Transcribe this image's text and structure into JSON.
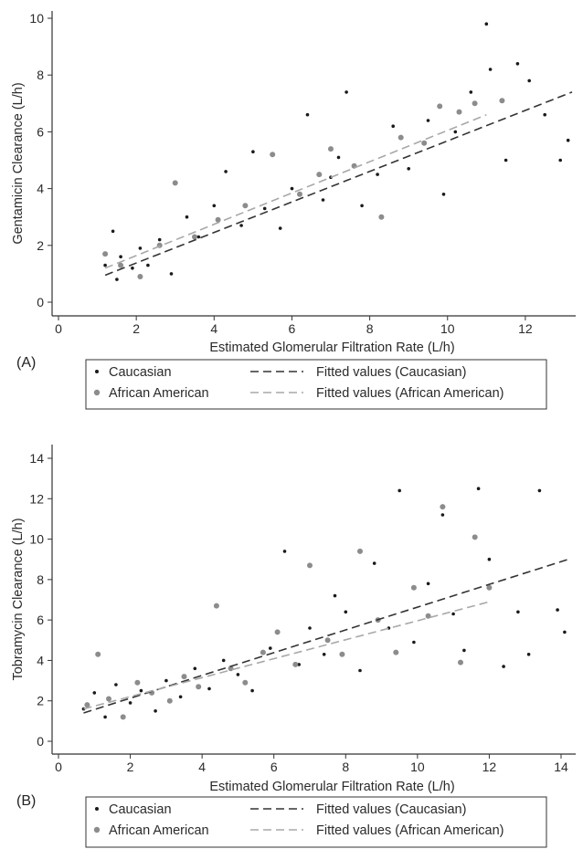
{
  "chart_data": [
    {
      "panel_label": "(A)",
      "type": "scatter",
      "xlabel": "Estimated Glomerular Filtration Rate (L/h)",
      "ylabel": "Gentamicin Clearance (L/h)",
      "xlim": [
        0,
        13.2
      ],
      "ylim": [
        -0.4,
        10.2
      ],
      "xticks": [
        0,
        2,
        4,
        6,
        8,
        10,
        12
      ],
      "yticks": [
        0,
        2,
        4,
        6,
        8,
        10
      ],
      "grid": false,
      "legend_position": "bottom",
      "legend": [
        "Caucasian",
        "African American",
        "Fitted values (Caucasian)",
        "Fitted values (African American)"
      ],
      "series": [
        {
          "name": "Caucasian",
          "kind": "points",
          "color": "#1a1a1a",
          "x": [
            1.2,
            1.4,
            1.5,
            1.6,
            1.9,
            2.1,
            2.3,
            2.6,
            2.9,
            3.3,
            3.6,
            4.0,
            4.3,
            4.7,
            5.0,
            5.3,
            5.7,
            6.0,
            6.4,
            6.8,
            7.0,
            7.2,
            7.4,
            7.8,
            8.2,
            8.6,
            9.0,
            9.5,
            9.9,
            10.2,
            10.6,
            11.0,
            11.1,
            11.5,
            11.8,
            12.1,
            12.5,
            12.9,
            13.1
          ],
          "y": [
            1.3,
            2.5,
            0.8,
            1.6,
            1.2,
            1.9,
            1.3,
            2.2,
            1.0,
            3.0,
            2.3,
            3.4,
            4.6,
            2.7,
            5.3,
            3.3,
            2.6,
            4.0,
            6.6,
            3.6,
            4.4,
            5.1,
            7.4,
            3.4,
            4.5,
            6.2,
            4.7,
            6.4,
            3.8,
            6.0,
            7.4,
            9.8,
            8.2,
            5.0,
            8.4,
            7.8,
            6.6,
            5.0,
            5.7
          ],
          "fit": {
            "name": "Fitted values (Caucasian)",
            "x": [
              1.2,
              13.2
            ],
            "y": [
              0.95,
              7.4
            ],
            "color": "#333333"
          }
        },
        {
          "name": "African American",
          "kind": "points",
          "color": "#8c8c8c",
          "x": [
            1.2,
            1.6,
            2.1,
            2.6,
            3.0,
            3.5,
            4.1,
            4.8,
            5.5,
            6.2,
            6.7,
            7.0,
            7.6,
            8.3,
            8.8,
            9.4,
            9.8,
            10.3,
            10.7,
            11.4
          ],
          "y": [
            1.7,
            1.3,
            0.9,
            2.0,
            4.2,
            2.3,
            2.9,
            3.4,
            5.2,
            3.8,
            4.5,
            5.4,
            4.8,
            3.0,
            5.8,
            5.6,
            6.9,
            6.7,
            7.0,
            7.1
          ],
          "fit": {
            "name": "Fitted values (African American)",
            "x": [
              1.2,
              11.0
            ],
            "y": [
              1.2,
              6.6
            ],
            "color": "#a8a8a8"
          }
        }
      ]
    },
    {
      "panel_label": "(B)",
      "type": "scatter",
      "xlabel": "Estimated Glomerular Filtration Rate (L/h)",
      "ylabel": "Tobramycin Clearance (L/h)",
      "xlim": [
        -0.2,
        14.2
      ],
      "ylim": [
        -0.4,
        14.5
      ],
      "xticks": [
        0,
        2,
        4,
        6,
        8,
        10,
        12,
        14
      ],
      "yticks": [
        0,
        2,
        4,
        6,
        8,
        10,
        12,
        14
      ],
      "grid": false,
      "legend_position": "bottom",
      "legend": [
        "Caucasian",
        "African American",
        "Fitted values (Caucasian)",
        "Fitted values (African American)"
      ],
      "series": [
        {
          "name": "Caucasian",
          "kind": "points",
          "color": "#1a1a1a",
          "x": [
            0.7,
            1.0,
            1.3,
            1.6,
            2.0,
            2.3,
            2.7,
            3.0,
            3.4,
            3.8,
            4.2,
            4.6,
            5.0,
            5.4,
            5.9,
            6.3,
            6.7,
            7.0,
            7.4,
            7.7,
            8.0,
            8.4,
            8.8,
            9.2,
            9.5,
            9.9,
            10.3,
            10.7,
            11.0,
            11.3,
            11.7,
            12.0,
            12.4,
            12.8,
            13.1,
            13.4,
            13.9,
            14.1
          ],
          "y": [
            1.6,
            2.4,
            1.2,
            2.8,
            1.9,
            2.5,
            1.5,
            3.0,
            2.2,
            3.6,
            2.6,
            4.0,
            3.3,
            2.5,
            4.6,
            9.4,
            3.8,
            5.6,
            4.3,
            7.2,
            6.4,
            3.5,
            8.8,
            5.6,
            12.4,
            4.9,
            7.8,
            11.2,
            6.3,
            4.5,
            12.5,
            9.0,
            3.7,
            6.4,
            4.3,
            12.4,
            6.5,
            5.4
          ],
          "fit": {
            "name": "Fitted values (Caucasian)",
            "x": [
              0.7,
              14.2
            ],
            "y": [
              1.4,
              9.0
            ],
            "color": "#333333"
          }
        },
        {
          "name": "African American",
          "kind": "points",
          "color": "#8c8c8c",
          "x": [
            0.8,
            1.1,
            1.4,
            1.8,
            2.2,
            2.6,
            3.1,
            3.5,
            3.9,
            4.4,
            4.8,
            5.2,
            5.7,
            6.1,
            6.6,
            7.0,
            7.5,
            7.9,
            8.4,
            8.9,
            9.4,
            9.9,
            10.3,
            10.7,
            11.2,
            11.6,
            12.0
          ],
          "y": [
            1.8,
            4.3,
            2.1,
            1.2,
            2.9,
            2.4,
            2.0,
            3.2,
            2.7,
            6.7,
            3.6,
            2.9,
            4.4,
            5.4,
            3.8,
            8.7,
            5.0,
            4.3,
            9.4,
            6.0,
            4.4,
            7.6,
            6.2,
            11.6,
            3.9,
            10.1,
            7.6
          ],
          "fit": {
            "name": "Fitted values (African American)",
            "x": [
              0.7,
              12.0
            ],
            "y": [
              1.6,
              6.9
            ],
            "color": "#a8a8a8"
          }
        }
      ]
    }
  ]
}
